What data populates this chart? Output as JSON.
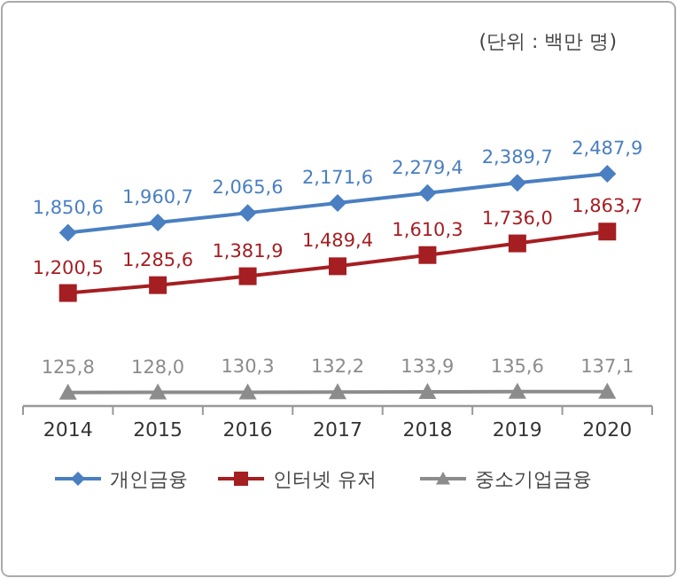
{
  "chart_data": {
    "type": "line",
    "categories": [
      "2014",
      "2015",
      "2016",
      "2017",
      "2018",
      "2019",
      "2020"
    ],
    "annotations": [
      "(단위 : 백만 명)"
    ],
    "series": [
      {
        "name": "개인금융",
        "color": "#4a7fc1",
        "marker": "diamond",
        "values": [
          1850.6,
          1960.7,
          2065.6,
          2171.6,
          2279.4,
          2389.7,
          2487.9
        ],
        "value_labels": [
          "1,850,6",
          "1,960,7",
          "2,065,6",
          "2,171,6",
          "2,279,4",
          "2,389,7",
          "2,487,9"
        ]
      },
      {
        "name": "인터넷 유저",
        "color": "#a51e22",
        "marker": "square",
        "values": [
          1200.5,
          1285.6,
          1381.9,
          1489.4,
          1610.3,
          1736.0,
          1863.7
        ],
        "value_labels": [
          "1,200,5",
          "1,285,6",
          "1,381,9",
          "1,489,4",
          "1,610,3",
          "1,736,0",
          "1,863,7"
        ]
      },
      {
        "name": "중소기업금융",
        "color": "#8c8c8c",
        "marker": "triangle",
        "values": [
          125.8,
          128.0,
          130.3,
          132.2,
          133.9,
          135.6,
          137.1
        ],
        "value_labels": [
          "125,8",
          "128,0",
          "130,3",
          "132,2",
          "133,9",
          "135,6",
          "137,1"
        ]
      }
    ],
    "legend": "bottom",
    "line_style": "solid"
  }
}
